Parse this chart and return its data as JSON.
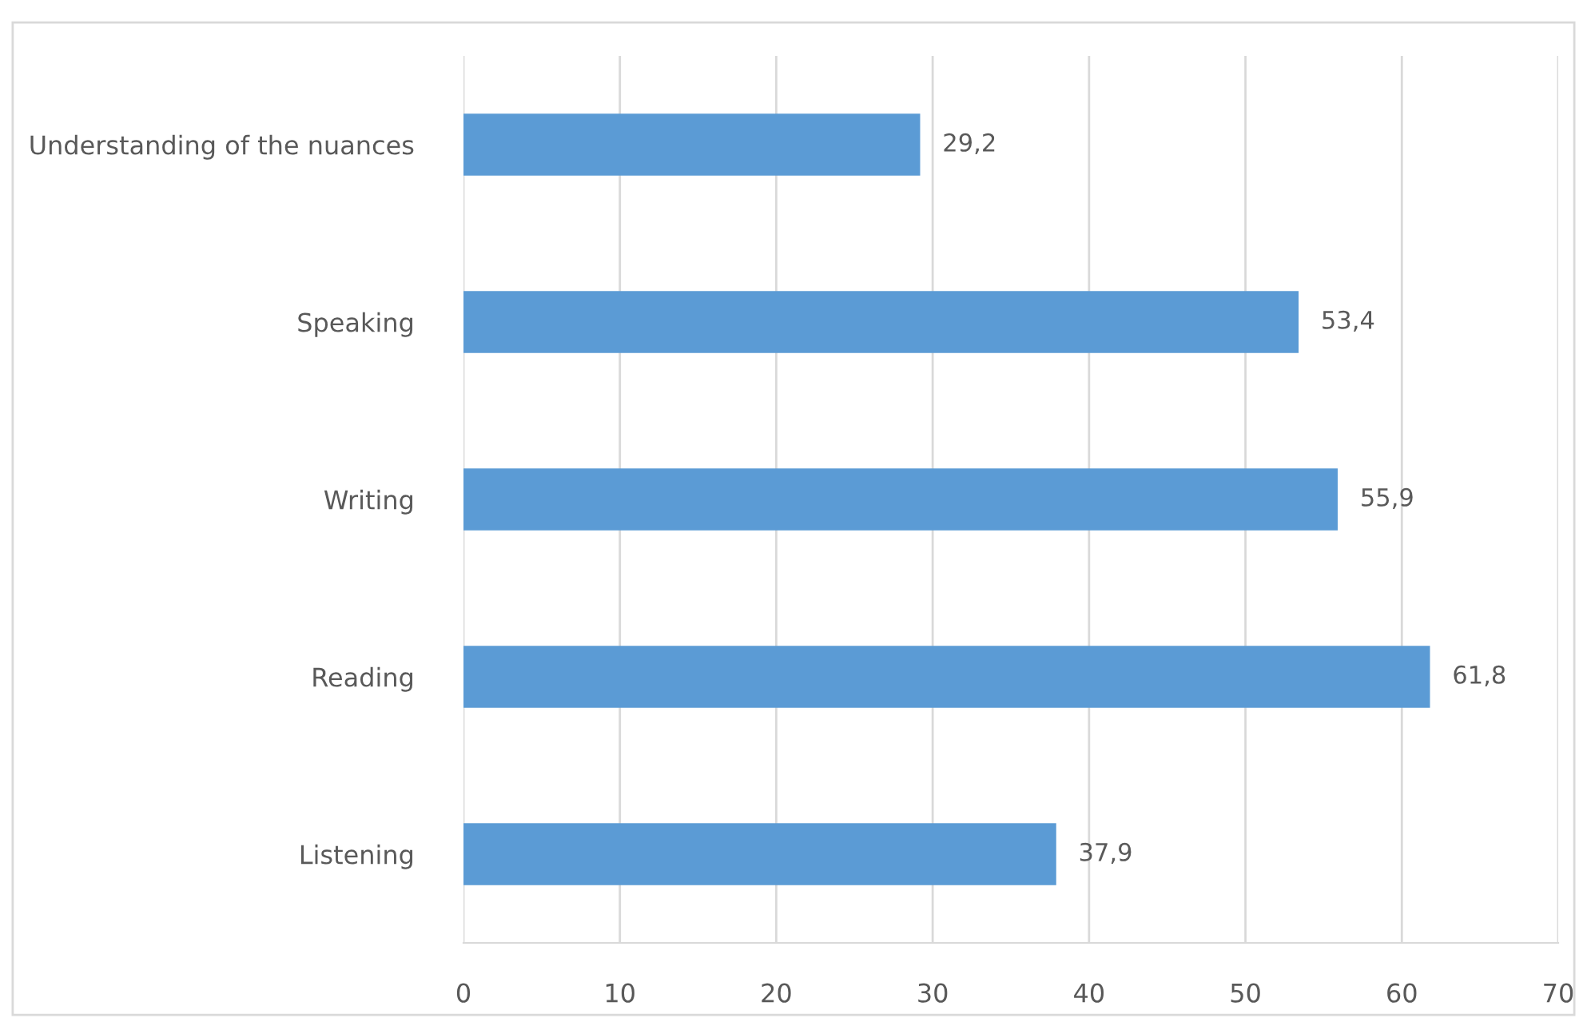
{
  "chart_data": {
    "type": "bar",
    "orientation": "horizontal",
    "categories": [
      "Understanding of the nuances",
      "Speaking",
      "Writing",
      "Reading",
      "Listening"
    ],
    "values": [
      29.2,
      53.4,
      55.9,
      61.8,
      37.9
    ],
    "value_labels": [
      "29,2",
      "53,4",
      "55,9",
      "61,8",
      "37,9"
    ],
    "color": "#5b9bd5",
    "xlim": [
      0,
      70
    ],
    "xticks": [
      0,
      10,
      20,
      30,
      40,
      50,
      60,
      70
    ],
    "grid": "x",
    "legend": false
  }
}
